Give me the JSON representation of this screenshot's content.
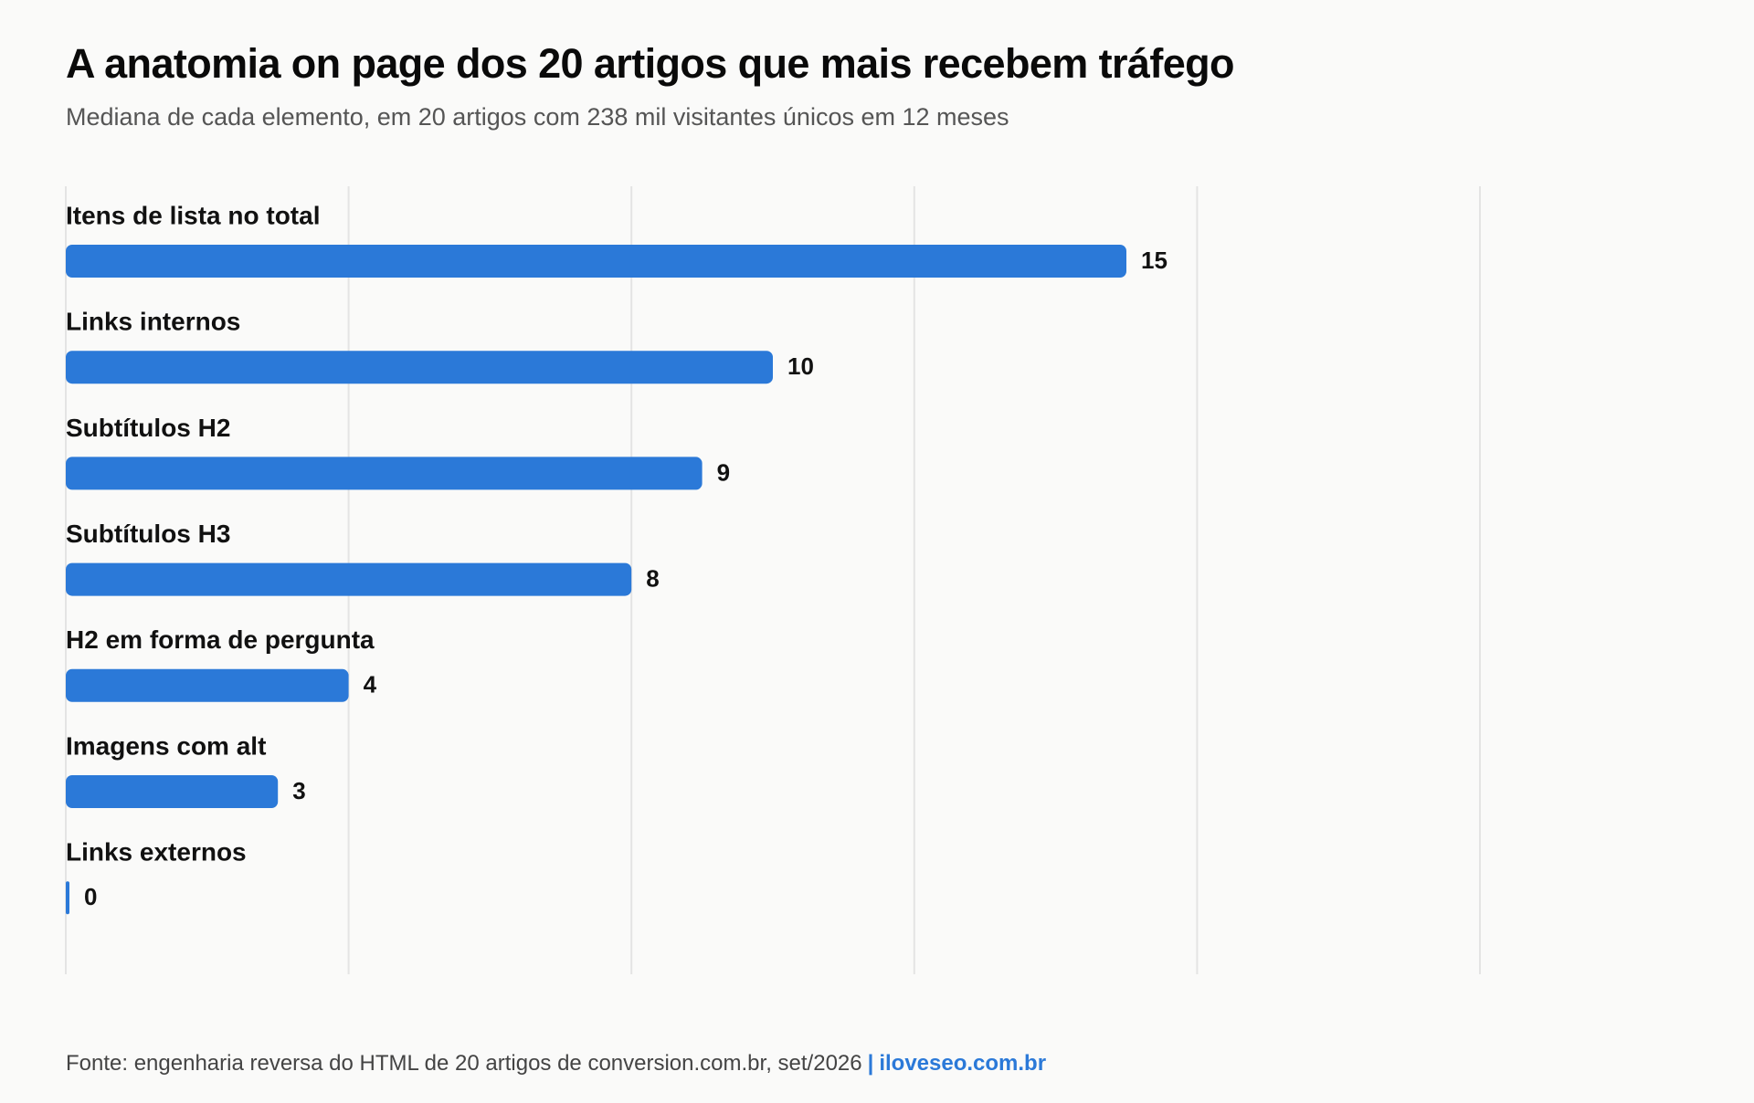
{
  "title": "A anatomia on page dos 20 artigos que mais recebem tráfego",
  "subtitle": "Mediana de cada elemento, em 20 artigos com 238 mil visitantes únicos em 12 meses",
  "footer": {
    "source": "Fonte: engenharia reversa do HTML de 20 artigos de conversion.com.br, set/2026",
    "separator": "|",
    "brand": "iloveseo.com.br"
  },
  "colors": {
    "bar": "#2b79d8",
    "grid": "#e4e4e4",
    "background": "#fafaf9"
  },
  "chart_data": {
    "type": "bar",
    "orientation": "horizontal",
    "title": "A anatomia on page dos 20 artigos que mais recebem tráfego",
    "subtitle": "Mediana de cada elemento, em 20 artigos com 238 mil visitantes únicos em 12 meses",
    "categories": [
      "Itens de lista no total",
      "Links internos",
      "Subtítulos H2",
      "Subtítulos H3",
      "H2 em forma de pergunta",
      "Imagens com alt",
      "Links externos"
    ],
    "values": [
      15,
      10,
      9,
      8,
      4,
      3,
      0
    ],
    "data_labels": [
      "15",
      "10",
      "9",
      "8",
      "4",
      "3",
      "0"
    ],
    "xlim": [
      0,
      20
    ],
    "gridlines": [
      0,
      4,
      8,
      12,
      16,
      20
    ],
    "grid": true,
    "legend": false
  }
}
